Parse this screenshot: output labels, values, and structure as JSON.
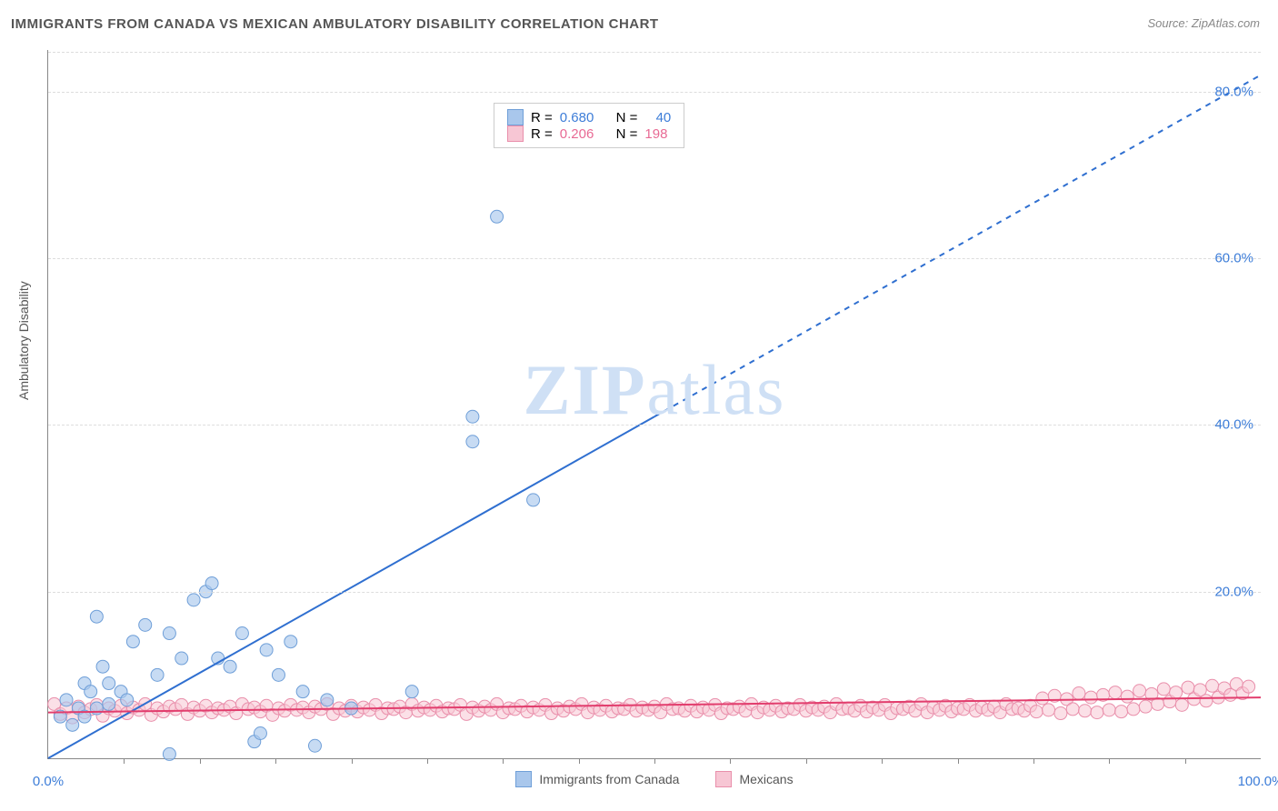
{
  "title": "IMMIGRANTS FROM CANADA VS MEXICAN AMBULATORY DISABILITY CORRELATION CHART",
  "source_label": "Source: ZipAtlas.com",
  "y_axis_title": "Ambulatory Disability",
  "watermark": {
    "bold": "ZIP",
    "rest": "atlas"
  },
  "chart": {
    "type": "scatter",
    "xlim": [
      0,
      100
    ],
    "ylim": [
      0,
      85
    ],
    "x_ticks": [
      0,
      100
    ],
    "x_tick_labels": [
      "0.0%",
      "100.0%"
    ],
    "minor_x_ticks": [
      6.25,
      12.5,
      18.75,
      25,
      31.25,
      37.5,
      43.75,
      50,
      56.25,
      62.5,
      68.75,
      75,
      81.25,
      87.5,
      93.75
    ],
    "y_ticks": [
      20,
      40,
      60,
      80
    ],
    "y_tick_labels": [
      "20.0%",
      "40.0%",
      "60.0%",
      "80.0%"
    ],
    "background_color": "#ffffff",
    "grid_color": "#dddddd",
    "series": [
      {
        "name": "Immigrants from Canada",
        "label_key": "canada",
        "marker_fill": "#a9c7ec",
        "marker_stroke": "#6f9fd8",
        "marker_opacity": 0.65,
        "marker_radius": 7,
        "line_color": "#2f6fd0",
        "line_width": 2,
        "trend": {
          "x1": 0,
          "y1": 0,
          "x2": 100,
          "y2": 82,
          "solid_until_x": 50
        },
        "R": "0.680",
        "N": "40",
        "points": [
          [
            1,
            5
          ],
          [
            1.5,
            7
          ],
          [
            2,
            4
          ],
          [
            2.5,
            6
          ],
          [
            3,
            9
          ],
          [
            3,
            5
          ],
          [
            3.5,
            8
          ],
          [
            4,
            17
          ],
          [
            4,
            6
          ],
          [
            4.5,
            11
          ],
          [
            5,
            9
          ],
          [
            5,
            6.5
          ],
          [
            6,
            8
          ],
          [
            6.5,
            7
          ],
          [
            7,
            14
          ],
          [
            8,
            16
          ],
          [
            9,
            10
          ],
          [
            10,
            0.5
          ],
          [
            10,
            15
          ],
          [
            11,
            12
          ],
          [
            12,
            19
          ],
          [
            13,
            20
          ],
          [
            13.5,
            21
          ],
          [
            14,
            12
          ],
          [
            15,
            11
          ],
          [
            16,
            15
          ],
          [
            17,
            2
          ],
          [
            17.5,
            3
          ],
          [
            18,
            13
          ],
          [
            19,
            10
          ],
          [
            20,
            14
          ],
          [
            21,
            8
          ],
          [
            22,
            1.5
          ],
          [
            23,
            7
          ],
          [
            25,
            6
          ],
          [
            30,
            8
          ],
          [
            35,
            41
          ],
          [
            35,
            38
          ],
          [
            37,
            65
          ],
          [
            40,
            31
          ]
        ]
      },
      {
        "name": "Mexicans",
        "label_key": "mexicans",
        "marker_fill": "#f7c6d4",
        "marker_stroke": "#e98fab",
        "marker_opacity": 0.55,
        "marker_radius": 7,
        "line_color": "#e23d6d",
        "line_width": 2,
        "trend": {
          "x1": 0,
          "y1": 5.5,
          "x2": 100,
          "y2": 7.3,
          "solid_until_x": 100
        },
        "R": "0.206",
        "N": "198",
        "points": [
          [
            0.5,
            6.5
          ],
          [
            1,
            5.3
          ],
          [
            1.5,
            6
          ],
          [
            2,
            4.9
          ],
          [
            2.5,
            6.2
          ],
          [
            3,
            5.5
          ],
          [
            3.5,
            5.9
          ],
          [
            4,
            6.4
          ],
          [
            4.5,
            5.1
          ],
          [
            5,
            6
          ],
          [
            5.5,
            5.7
          ],
          [
            6,
            6.3
          ],
          [
            6.5,
            5.4
          ],
          [
            7,
            6.1
          ],
          [
            7.5,
            5.8
          ],
          [
            8,
            6.5
          ],
          [
            8.5,
            5.2
          ],
          [
            9,
            6
          ],
          [
            9.5,
            5.6
          ],
          [
            10,
            6.2
          ],
          [
            10.5,
            5.9
          ],
          [
            11,
            6.4
          ],
          [
            11.5,
            5.3
          ],
          [
            12,
            6.1
          ],
          [
            12.5,
            5.7
          ],
          [
            13,
            6.3
          ],
          [
            13.5,
            5.5
          ],
          [
            14,
            6
          ],
          [
            14.5,
            5.8
          ],
          [
            15,
            6.2
          ],
          [
            15.5,
            5.4
          ],
          [
            16,
            6.5
          ],
          [
            16.5,
            5.9
          ],
          [
            17,
            6.1
          ],
          [
            17.5,
            5.6
          ],
          [
            18,
            6.3
          ],
          [
            18.5,
            5.2
          ],
          [
            19,
            6
          ],
          [
            19.5,
            5.7
          ],
          [
            20,
            6.4
          ],
          [
            20.5,
            5.8
          ],
          [
            21,
            6.1
          ],
          [
            21.5,
            5.5
          ],
          [
            22,
            6.2
          ],
          [
            22.5,
            5.9
          ],
          [
            23,
            6.5
          ],
          [
            23.5,
            5.3
          ],
          [
            24,
            6
          ],
          [
            24.5,
            5.7
          ],
          [
            25,
            6.3
          ],
          [
            25.5,
            5.6
          ],
          [
            26,
            6.1
          ],
          [
            26.5,
            5.8
          ],
          [
            27,
            6.4
          ],
          [
            27.5,
            5.4
          ],
          [
            28,
            6
          ],
          [
            28.5,
            5.9
          ],
          [
            29,
            6.2
          ],
          [
            29.5,
            5.5
          ],
          [
            30,
            6.5
          ],
          [
            30.5,
            5.7
          ],
          [
            31,
            6.1
          ],
          [
            31.5,
            5.8
          ],
          [
            32,
            6.3
          ],
          [
            32.5,
            5.6
          ],
          [
            33,
            6
          ],
          [
            33.5,
            5.9
          ],
          [
            34,
            6.4
          ],
          [
            34.5,
            5.3
          ],
          [
            35,
            6.1
          ],
          [
            35.5,
            5.7
          ],
          [
            36,
            6.2
          ],
          [
            36.5,
            5.8
          ],
          [
            37,
            6.5
          ],
          [
            37.5,
            5.5
          ],
          [
            38,
            6
          ],
          [
            38.5,
            5.9
          ],
          [
            39,
            6.3
          ],
          [
            39.5,
            5.6
          ],
          [
            40,
            6.1
          ],
          [
            40.5,
            5.8
          ],
          [
            41,
            6.4
          ],
          [
            41.5,
            5.4
          ],
          [
            42,
            6
          ],
          [
            42.5,
            5.7
          ],
          [
            43,
            6.2
          ],
          [
            43.5,
            5.9
          ],
          [
            44,
            6.5
          ],
          [
            44.5,
            5.5
          ],
          [
            45,
            6.1
          ],
          [
            45.5,
            5.8
          ],
          [
            46,
            6.3
          ],
          [
            46.5,
            5.6
          ],
          [
            47,
            6
          ],
          [
            47.5,
            5.9
          ],
          [
            48,
            6.4
          ],
          [
            48.5,
            5.7
          ],
          [
            49,
            6.1
          ],
          [
            49.5,
            5.8
          ],
          [
            50,
            6.2
          ],
          [
            50.5,
            5.5
          ],
          [
            51,
            6.5
          ],
          [
            51.5,
            5.9
          ],
          [
            52,
            6
          ],
          [
            52.5,
            5.7
          ],
          [
            53,
            6.3
          ],
          [
            53.5,
            5.6
          ],
          [
            54,
            6.1
          ],
          [
            54.5,
            5.8
          ],
          [
            55,
            6.4
          ],
          [
            55.5,
            5.4
          ],
          [
            56,
            6
          ],
          [
            56.5,
            5.9
          ],
          [
            57,
            6.2
          ],
          [
            57.5,
            5.7
          ],
          [
            58,
            6.5
          ],
          [
            58.5,
            5.5
          ],
          [
            59,
            6.1
          ],
          [
            59.5,
            5.8
          ],
          [
            60,
            6.3
          ],
          [
            60.5,
            5.6
          ],
          [
            61,
            6
          ],
          [
            61.5,
            5.9
          ],
          [
            62,
            6.4
          ],
          [
            62.5,
            5.7
          ],
          [
            63,
            6.1
          ],
          [
            63.5,
            5.8
          ],
          [
            64,
            6.2
          ],
          [
            64.5,
            5.5
          ],
          [
            65,
            6.5
          ],
          [
            65.5,
            5.9
          ],
          [
            66,
            6
          ],
          [
            66.5,
            5.7
          ],
          [
            67,
            6.3
          ],
          [
            67.5,
            5.6
          ],
          [
            68,
            6.1
          ],
          [
            68.5,
            5.8
          ],
          [
            69,
            6.4
          ],
          [
            69.5,
            5.4
          ],
          [
            70,
            6
          ],
          [
            70.5,
            5.9
          ],
          [
            71,
            6.2
          ],
          [
            71.5,
            5.7
          ],
          [
            72,
            6.5
          ],
          [
            72.5,
            5.5
          ],
          [
            73,
            6.1
          ],
          [
            73.5,
            5.8
          ],
          [
            74,
            6.3
          ],
          [
            74.5,
            5.6
          ],
          [
            75,
            6
          ],
          [
            75.5,
            5.9
          ],
          [
            76,
            6.4
          ],
          [
            76.5,
            5.7
          ],
          [
            77,
            6.1
          ],
          [
            77.5,
            5.8
          ],
          [
            78,
            6.2
          ],
          [
            78.5,
            5.5
          ],
          [
            79,
            6.5
          ],
          [
            79.5,
            5.9
          ],
          [
            80,
            6
          ],
          [
            80.5,
            5.7
          ],
          [
            81,
            6.3
          ],
          [
            81.5,
            5.6
          ],
          [
            82,
            7.2
          ],
          [
            82.5,
            5.8
          ],
          [
            83,
            7.5
          ],
          [
            83.5,
            5.4
          ],
          [
            84,
            7.1
          ],
          [
            84.5,
            5.9
          ],
          [
            85,
            7.8
          ],
          [
            85.5,
            5.7
          ],
          [
            86,
            7.3
          ],
          [
            86.5,
            5.5
          ],
          [
            87,
            7.6
          ],
          [
            87.5,
            5.8
          ],
          [
            88,
            7.9
          ],
          [
            88.5,
            5.6
          ],
          [
            89,
            7.4
          ],
          [
            89.5,
            5.9
          ],
          [
            90,
            8.1
          ],
          [
            90.5,
            6.2
          ],
          [
            91,
            7.7
          ],
          [
            91.5,
            6.5
          ],
          [
            92,
            8.3
          ],
          [
            92.5,
            6.8
          ],
          [
            93,
            7.9
          ],
          [
            93.5,
            6.4
          ],
          [
            94,
            8.5
          ],
          [
            94.5,
            7.1
          ],
          [
            95,
            8.2
          ],
          [
            95.5,
            6.9
          ],
          [
            96,
            8.7
          ],
          [
            96.5,
            7.3
          ],
          [
            97,
            8.4
          ],
          [
            97.5,
            7.6
          ],
          [
            98,
            8.9
          ],
          [
            98.5,
            7.8
          ],
          [
            99,
            8.6
          ]
        ]
      }
    ]
  },
  "legend_top": {
    "R_label": "R =",
    "N_label": "N ="
  },
  "legend_bottom": {
    "canada": "Immigrants from Canada",
    "mexicans": "Mexicans"
  },
  "colors": {
    "blue_text": "#3d7dd8",
    "pink_text": "#e86a94",
    "x_blue": "#3d7dd8",
    "x_label_gray": "#666666"
  }
}
